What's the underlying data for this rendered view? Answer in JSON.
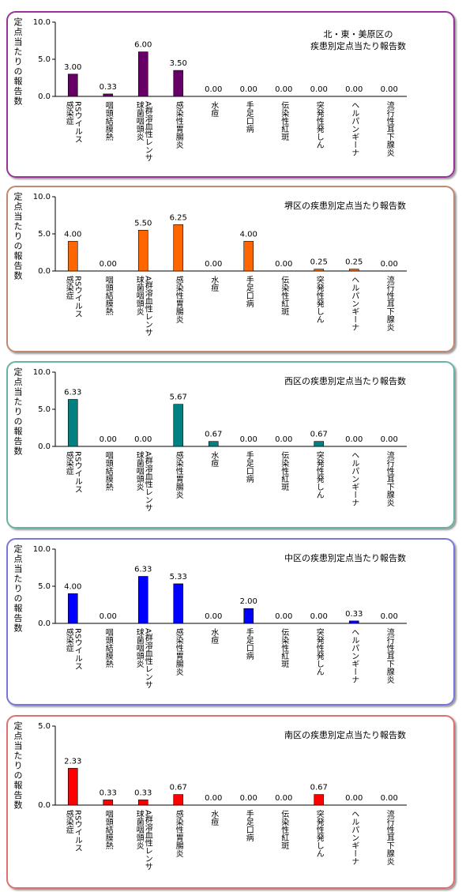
{
  "chart_data": [
    {
      "type": "bar",
      "title": "北・東・美原区の\n疾患別定点当たり報告数",
      "y_label": "定点当たりの報告数",
      "categories": [
        "RSウイルス\n感染症",
        "咽頭結膜熱",
        "A群溶血性レンサ\n球菌咽頭炎",
        "感染性胃腸炎",
        "水痘",
        "手足口病",
        "伝染性紅斑",
        "突発性発しん",
        "ヘルパンギーナ",
        "流行性耳下腺炎"
      ],
      "values": [
        3.0,
        0.33,
        6.0,
        3.5,
        0,
        0,
        0,
        0,
        0,
        0
      ],
      "value_labels": [
        "3.00",
        "0.33",
        "6.00",
        "3.50",
        "0.00",
        "0.00",
        "0.00",
        "0.00",
        "0.00",
        "0.00"
      ],
      "color": "#660066",
      "ylim": [
        0,
        10
      ],
      "yticks": [
        {
          "value": 0,
          "label": "0.0"
        },
        {
          "value": 5,
          "label": "5.0"
        },
        {
          "value": 10,
          "label": "10.0"
        }
      ]
    },
    {
      "type": "bar",
      "title": "堺区の疾患別定点当たり報告数",
      "y_label": "定点当たりの報告数",
      "categories": [
        "RSウイルス\n感染症",
        "咽頭結膜熱",
        "A群溶血性レンサ\n球菌咽頭炎",
        "感染性胃腸炎",
        "水痘",
        "手足口病",
        "伝染性紅斑",
        "突発性発しん",
        "ヘルパンギーナ",
        "流行性耳下腺炎"
      ],
      "values": [
        4.0,
        0,
        5.5,
        6.25,
        0,
        4.0,
        0,
        0.25,
        0.25,
        0
      ],
      "value_labels": [
        "4.00",
        "0.00",
        "5.50",
        "6.25",
        "0.00",
        "4.00",
        "0.00",
        "0.25",
        "0.25",
        "0.00"
      ],
      "color": "#ff6600",
      "ylim": [
        0,
        10
      ],
      "yticks": [
        {
          "value": 0,
          "label": "0.0"
        },
        {
          "value": 5,
          "label": "5.0"
        },
        {
          "value": 10,
          "label": "10.0"
        }
      ]
    },
    {
      "type": "bar",
      "title": "西区の疾患別定点当たり報告数",
      "y_label": "定点当たりの報告数",
      "categories": [
        "RSウイルス\n感染症",
        "咽頭結膜熱",
        "A群溶血性レンサ\n球菌咽頭炎",
        "感染性胃腸炎",
        "水痘",
        "手足口病",
        "伝染性紅斑",
        "突発性発しん",
        "ヘルパンギーナ",
        "流行性耳下腺炎"
      ],
      "values": [
        6.33,
        0,
        0,
        5.67,
        0.67,
        0,
        0,
        0.67,
        0,
        0
      ],
      "value_labels": [
        "6.33",
        "0.00",
        "0.00",
        "5.67",
        "0.67",
        "0.00",
        "0.00",
        "0.67",
        "0.00",
        "0.00"
      ],
      "color": "#008080",
      "ylim": [
        0,
        10
      ],
      "yticks": [
        {
          "value": 0,
          "label": "0.0"
        },
        {
          "value": 5,
          "label": "5.0"
        },
        {
          "value": 10,
          "label": "10.0"
        }
      ]
    },
    {
      "type": "bar",
      "title": "中区の疾患別定点当たり報告数",
      "y_label": "定点当たりの報告数",
      "categories": [
        "RSウイルス\n感染症",
        "咽頭結膜熱",
        "A群溶血性レンサ\n球菌咽頭炎",
        "感染性胃腸炎",
        "水痘",
        "手足口病",
        "伝染性紅斑",
        "突発性発しん",
        "ヘルパンギーナ",
        "流行性耳下腺炎"
      ],
      "values": [
        4.0,
        0,
        6.33,
        5.33,
        0,
        2.0,
        0,
        0,
        0.33,
        0
      ],
      "value_labels": [
        "4.00",
        "0.00",
        "6.33",
        "5.33",
        "0.00",
        "2.00",
        "0.00",
        "0.00",
        "0.33",
        "0.00"
      ],
      "color": "#0000ff",
      "ylim": [
        0,
        10
      ],
      "yticks": [
        {
          "value": 0,
          "label": "0.0"
        },
        {
          "value": 5,
          "label": "5.0"
        },
        {
          "value": 10,
          "label": "10.0"
        }
      ]
    },
    {
      "type": "bar",
      "title": "南区の疾患別定点当たり報告数",
      "y_label": "定点当たりの報告数",
      "categories": [
        "RSウイルス\n感染症",
        "咽頭結膜熱",
        "A群溶血性レンサ\n球菌咽頭炎",
        "感染性胃腸炎",
        "水痘",
        "手足口病",
        "伝染性紅斑",
        "突発性発しん",
        "ヘルパンギーナ",
        "流行性耳下腺炎"
      ],
      "values": [
        2.33,
        0.33,
        0.33,
        0.67,
        0,
        0,
        0,
        0.67,
        0,
        0
      ],
      "value_labels": [
        "2.33",
        "0.33",
        "0.33",
        "0.67",
        "0.00",
        "0.00",
        "0.00",
        "0.67",
        "0.00",
        "0.00"
      ],
      "color": "#ff0000",
      "ylim": [
        0,
        5
      ],
      "yticks": [
        {
          "value": 0,
          "label": "0.0"
        },
        {
          "value": 5,
          "label": "5.0"
        }
      ]
    }
  ]
}
